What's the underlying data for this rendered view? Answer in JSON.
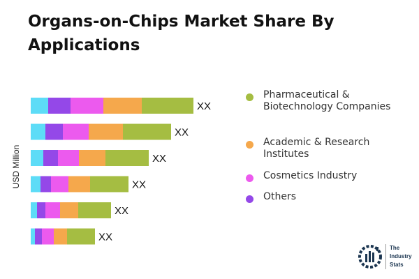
{
  "title": "Organs-on-Chips Market Share By Applications",
  "chart_data": {
    "type": "bar",
    "orientation": "horizontal",
    "stacked": true,
    "ylabel": "USD Million",
    "categories": [
      "",
      "",
      "",
      "",
      "",
      ""
    ],
    "data_labels": [
      "XX",
      "XX",
      "XX",
      "XX",
      "XX",
      "XX"
    ],
    "series": [
      {
        "name": "",
        "color": "#5ddcf7",
        "values": [
          25,
          21,
          18,
          14,
          9,
          6
        ]
      },
      {
        "name": "Others",
        "color": "#9448e8",
        "values": [
          32,
          25,
          21,
          15,
          12,
          10
        ]
      },
      {
        "name": "Cosmetics Industry",
        "color": "#ec5aee",
        "values": [
          47,
          37,
          30,
          25,
          21,
          17
        ]
      },
      {
        "name": "Academic & Research Institutes",
        "color": "#f5a84c",
        "values": [
          55,
          49,
          38,
          31,
          26,
          19
        ]
      },
      {
        "name": "Pharmaceutical & Biotechnology Companies",
        "color": "#a5bd42",
        "values": [
          74,
          69,
          62,
          55,
          47,
          40
        ]
      }
    ],
    "grid": false,
    "legend": "right"
  },
  "legend": [
    {
      "label": "Pharmaceutical & Biotechnology Companies",
      "color": "#a5bd42"
    },
    {
      "label": "Academic & Research Institutes",
      "color": "#f5a84c"
    },
    {
      "label": "Cosmetics Industry",
      "color": "#ec5aee"
    },
    {
      "label": "Others",
      "color": "#9448e8"
    }
  ],
  "logo": {
    "text": "The Industry Stats"
  }
}
